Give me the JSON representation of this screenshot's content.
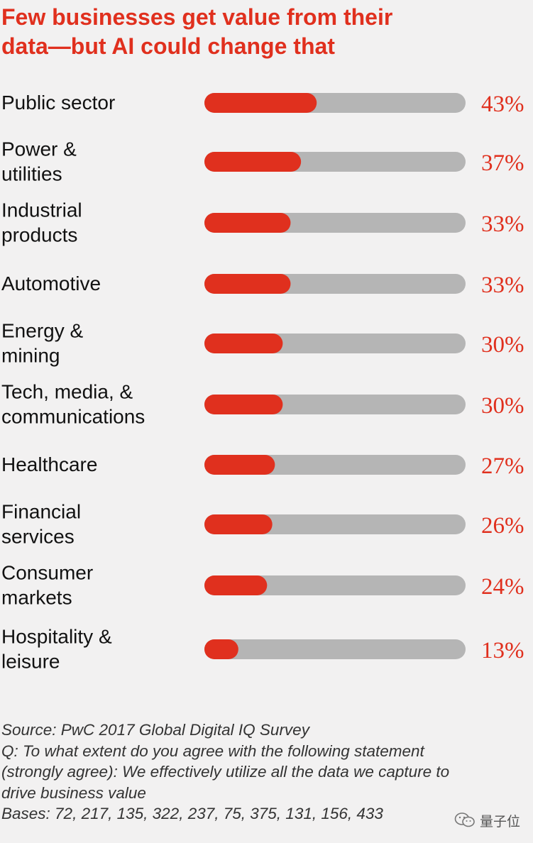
{
  "title_lines": [
    "Few businesses get value from their",
    "data—but AI could change that"
  ],
  "chart_data": {
    "type": "bar",
    "orientation": "horizontal",
    "categories": [
      [
        "Public sector"
      ],
      [
        "Power &",
        "utilities"
      ],
      [
        "Industrial",
        "products"
      ],
      [
        "Automotive"
      ],
      [
        "Energy &",
        "mining"
      ],
      [
        "Tech, media, &",
        "communications"
      ],
      [
        "Healthcare"
      ],
      [
        "Financial",
        "services"
      ],
      [
        "Consumer",
        "markets"
      ],
      [
        "Hospitality &",
        "leisure"
      ]
    ],
    "values": [
      43,
      37,
      33,
      33,
      30,
      30,
      27,
      26,
      24,
      13
    ],
    "value_labels": [
      "43%",
      "37%",
      "33%",
      "33%",
      "30%",
      "30%",
      "27%",
      "26%",
      "24%",
      "13%"
    ],
    "xlim": [
      0,
      100
    ],
    "unit": "%",
    "bar_color": "#e0301e",
    "track_color": "#b5b5b5",
    "grid": false
  },
  "footer_lines": [
    "Source: PwC 2017 Global Digital IQ Survey",
    "Q: To what extent do you agree with the following statement",
    "(strongly agree): We effectively utilize all the data we capture to",
    "drive business value",
    "Bases: 72, 217, 135, 322, 237, 75, 375, 131, 156, 433"
  ],
  "watermark": {
    "text": "量子位",
    "icon": "wechat-icon"
  }
}
